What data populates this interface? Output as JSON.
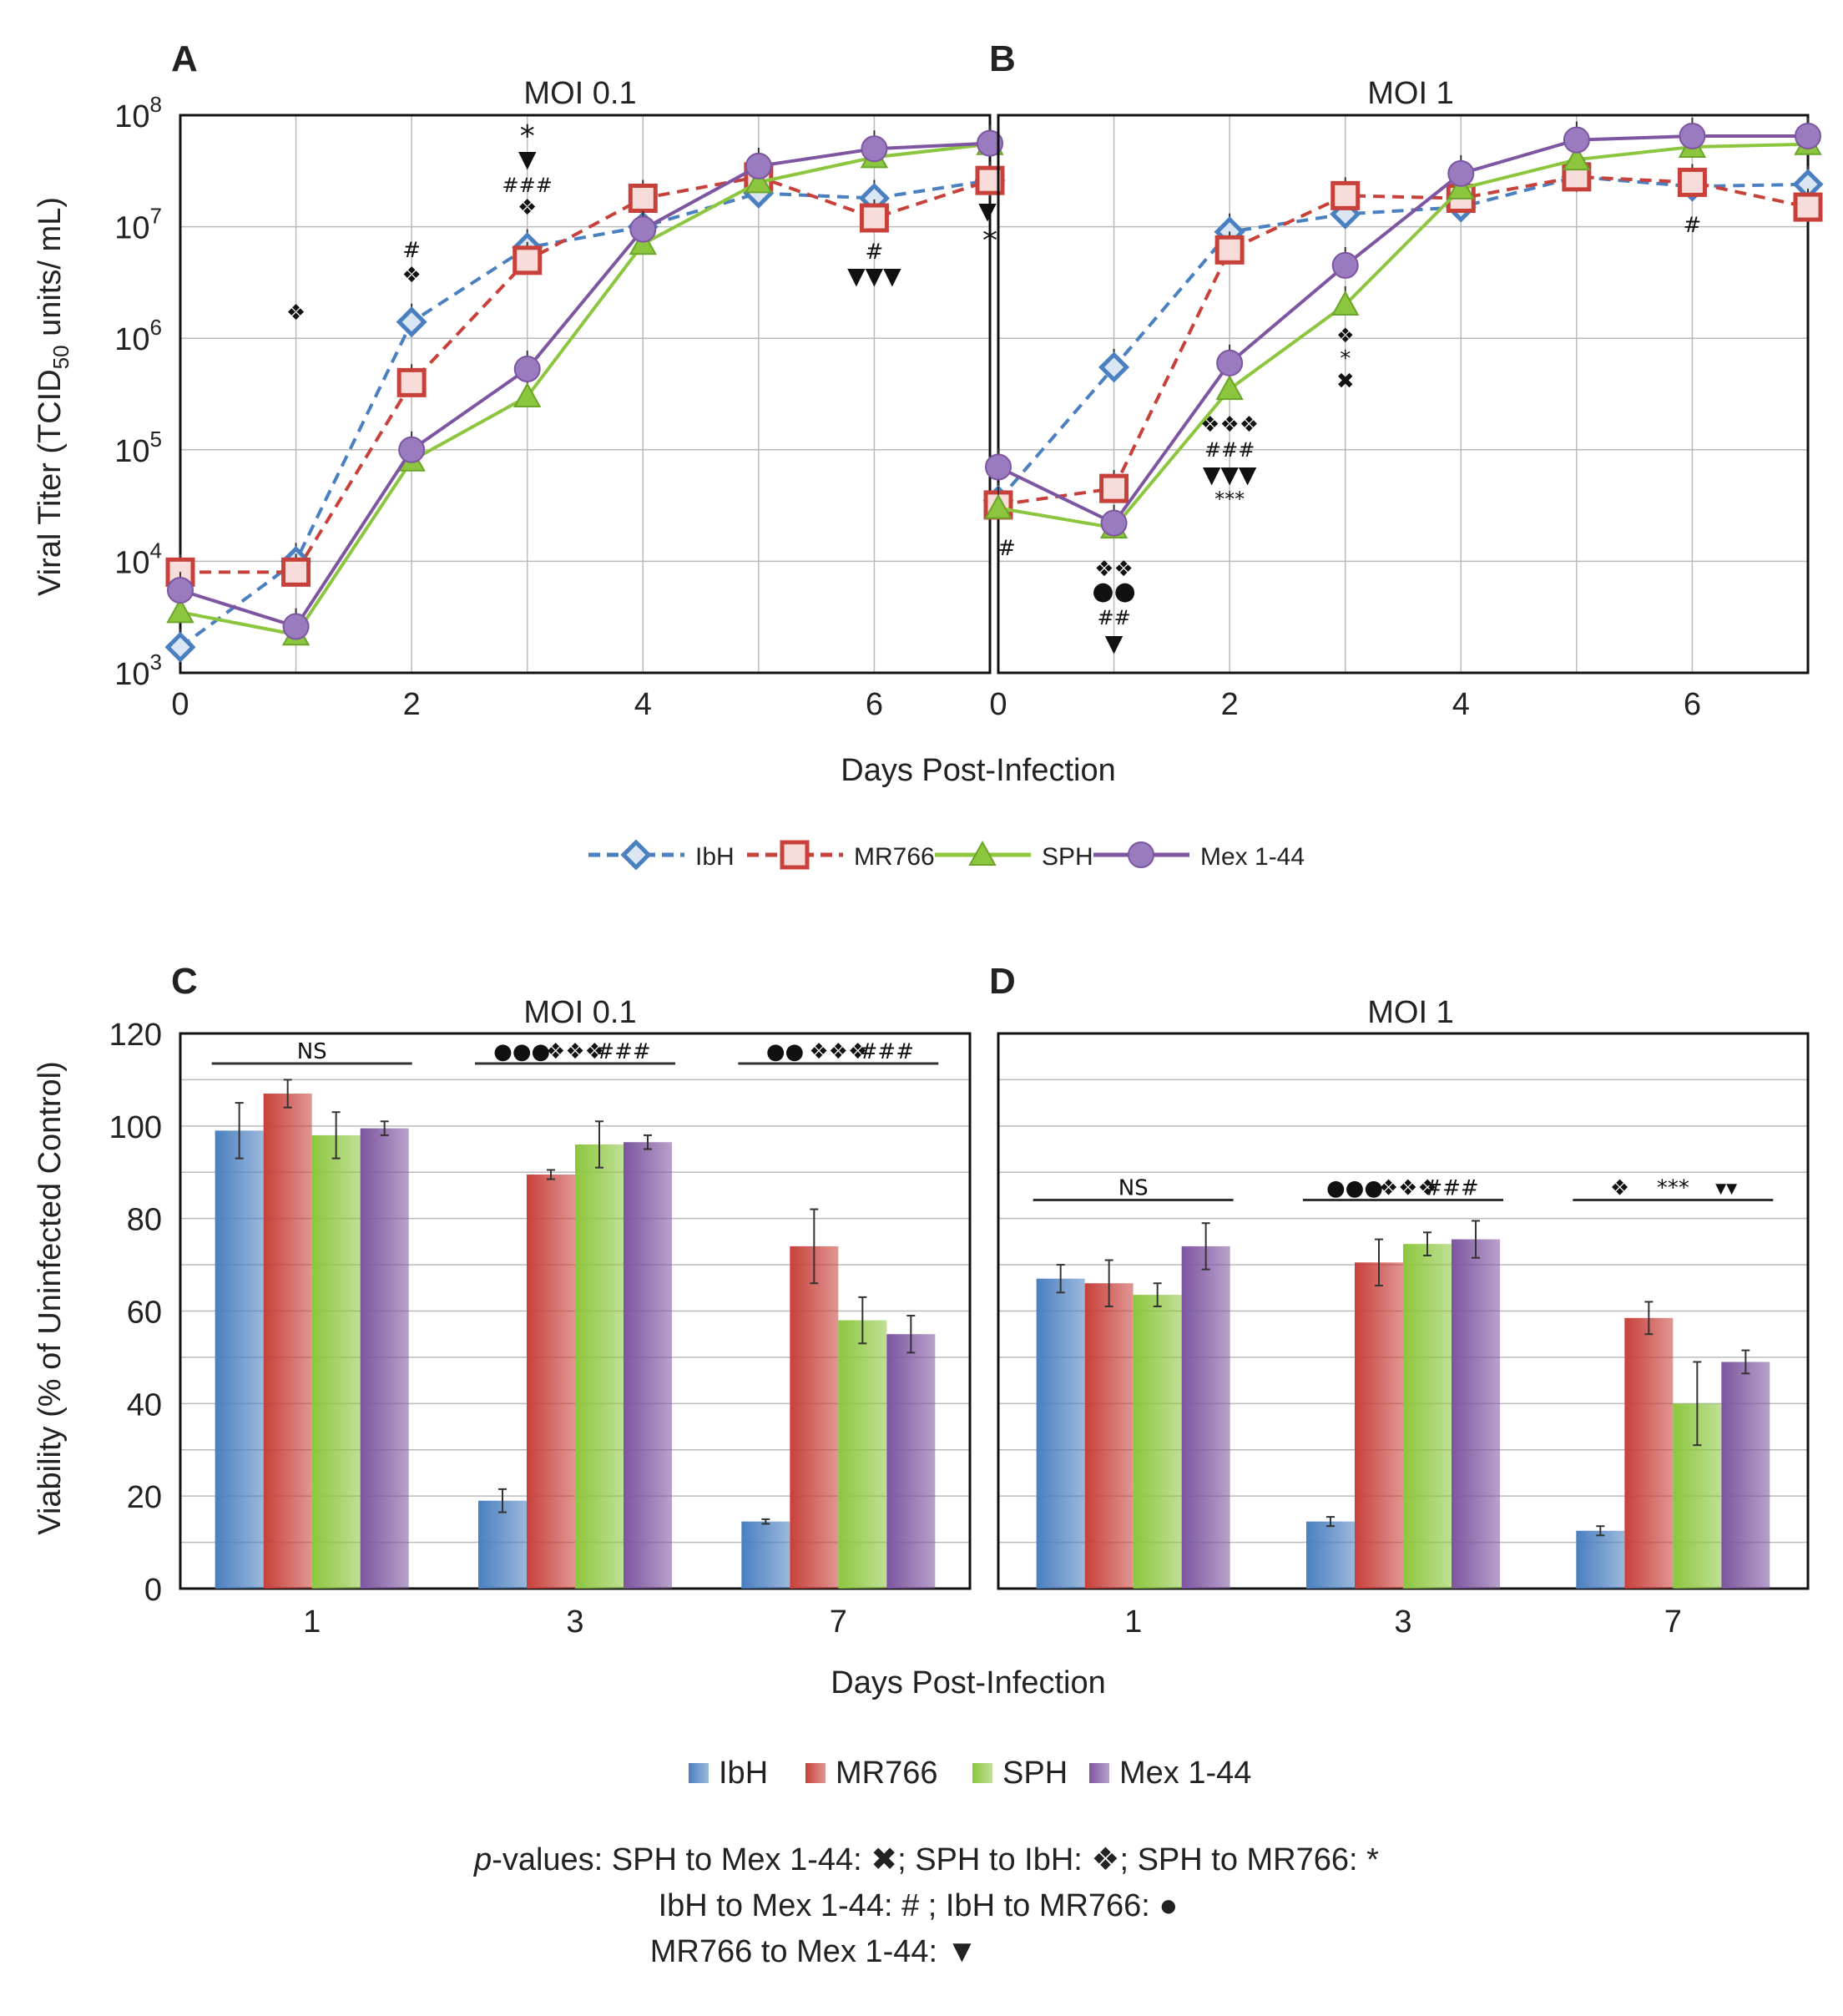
{
  "figure": {
    "xlabel_top": "Days Post-Infection",
    "xlabel_bottom": "Days Post-Infection",
    "ylabel_top_prefix": "Viral Titer (TCID",
    "ylabel_top_sub": "50",
    "ylabel_top_suffix": " units/ mL)",
    "ylabel_bottom": "Viability (% of Uninfected Control)"
  },
  "strains": [
    {
      "name": "IbH",
      "color": "#4a7fc0",
      "marker": "diamond",
      "dash": true
    },
    {
      "name": "MR766",
      "color": "#c8403a",
      "marker": "square",
      "dash": true
    },
    {
      "name": "SPH",
      "color": "#8cc63e",
      "marker": "triangle",
      "dash": false
    },
    {
      "name": "Mex 1-44",
      "color": "#7d55a0",
      "marker": "circle",
      "dash": false
    }
  ],
  "chart_data": [
    {
      "panel": "A",
      "type": "line",
      "title": "MOI 0.1",
      "xlabel": "Days Post-Infection",
      "ylabel": "Viral Titer (TCID50 units/ mL)",
      "x": [
        0,
        1,
        2,
        3,
        4,
        5,
        6,
        7
      ],
      "xticks": [
        0,
        2,
        4,
        6
      ],
      "xlim": [
        0,
        7
      ],
      "yscale": "log",
      "ylim": [
        1000,
        100000000
      ],
      "yticks": [
        [
          "10",
          "3"
        ],
        [
          "10",
          "4"
        ],
        [
          "10",
          "5"
        ],
        [
          "10",
          "6"
        ],
        [
          "10",
          "7"
        ],
        [
          "10",
          "8"
        ]
      ],
      "series": [
        {
          "name": "IbH",
          "values": [
            1700,
            10000,
            1400000,
            6500000,
            10000000,
            20000000,
            18000000,
            26000000
          ]
        },
        {
          "name": "MR766",
          "values": [
            8000,
            8000,
            400000,
            5000000,
            18000000,
            28000000,
            12000000,
            26000000
          ]
        },
        {
          "name": "SPH",
          "values": [
            3500,
            2200,
            80000,
            300000,
            7000000,
            25000000,
            42000000,
            55000000
          ]
        },
        {
          "name": "Mex 1-44",
          "values": [
            5500,
            2600,
            100000,
            530000,
            9500000,
            35000000,
            50000000,
            56000000
          ]
        }
      ],
      "annotations": [
        {
          "x": 1,
          "text": "❖"
        },
        {
          "x": 2,
          "text": "#"
        },
        {
          "x": 2,
          "text": "❖"
        },
        {
          "x": 3,
          "text": "*"
        },
        {
          "x": 3,
          "text": "▼"
        },
        {
          "x": 3,
          "text": "###"
        },
        {
          "x": 3,
          "text": "❖"
        },
        {
          "x": 6,
          "text": "#"
        },
        {
          "x": 6,
          "text": "▼▼▼"
        },
        {
          "x": 7,
          "text": "▼"
        },
        {
          "x": 7,
          "text": "*"
        }
      ]
    },
    {
      "panel": "B",
      "type": "line",
      "title": "MOI 1",
      "xlabel": "Days Post-Infection",
      "ylabel": "Viral Titer (TCID50 units/ mL)",
      "x": [
        0,
        1,
        2,
        3,
        4,
        5,
        6,
        7
      ],
      "xticks": [
        0,
        2,
        4,
        6
      ],
      "xlim": [
        0,
        7
      ],
      "yscale": "log",
      "ylim": [
        1000,
        100000000
      ],
      "series": [
        {
          "name": "IbH",
          "values": [
            35000,
            550000,
            9000000,
            13000000,
            15000000,
            28000000,
            23000000,
            24000000
          ]
        },
        {
          "name": "MR766",
          "values": [
            32000,
            45000,
            6200000,
            19000000,
            18000000,
            28000000,
            25000000,
            15000000
          ]
        },
        {
          "name": "SPH",
          "values": [
            30000,
            20000,
            350000,
            2000000,
            22000000,
            40000000,
            52000000,
            55000000
          ]
        },
        {
          "name": "Mex 1-44",
          "values": [
            70000,
            22000,
            600000,
            4500000,
            30000000,
            60000000,
            65000000,
            65000000
          ]
        }
      ],
      "annotations": [
        {
          "x": 0,
          "text": "#"
        },
        {
          "x": 1,
          "text": "❖❖"
        },
        {
          "x": 1,
          "text": "●●"
        },
        {
          "x": 1,
          "text": "##"
        },
        {
          "x": 1,
          "text": "▼"
        },
        {
          "x": 2,
          "text": "❖❖❖"
        },
        {
          "x": 2,
          "text": "###"
        },
        {
          "x": 2,
          "text": "▼▼▼"
        },
        {
          "x": 2,
          "text": "***"
        },
        {
          "x": 3,
          "text": "❖"
        },
        {
          "x": 3,
          "text": "*"
        },
        {
          "x": 3,
          "text": "✖"
        },
        {
          "x": 6,
          "text": "#"
        }
      ]
    },
    {
      "panel": "C",
      "type": "bar",
      "title": "MOI 0.1",
      "xlabel": "Days Post-Infection",
      "ylabel": "Viability (% of Uninfected Control)",
      "categories": [
        "1",
        "3",
        "7"
      ],
      "ylim": [
        0,
        120
      ],
      "yticks": [
        0,
        20,
        40,
        60,
        80,
        100,
        120
      ],
      "series": [
        {
          "name": "IbH",
          "values": [
            99,
            19,
            14.5
          ],
          "errors": [
            6,
            2.5,
            0.5
          ]
        },
        {
          "name": "MR766",
          "values": [
            107,
            89.5,
            74
          ],
          "errors": [
            3,
            1,
            8
          ]
        },
        {
          "name": "SPH",
          "values": [
            98,
            96,
            58
          ],
          "errors": [
            5,
            5,
            5
          ]
        },
        {
          "name": "Mex 1-44",
          "values": [
            99.5,
            96.5,
            55
          ],
          "errors": [
            1.5,
            1.5,
            4
          ]
        }
      ],
      "significance": [
        {
          "group": 0,
          "y": 113.5,
          "labels": [
            {
              "text": "NS",
              "offset": 0
            }
          ]
        },
        {
          "group": 1,
          "y": 113.5,
          "labels": [
            {
              "text": "●●●",
              "offset": -0.55
            },
            {
              "text": "❖❖❖",
              "offset": 0
            },
            {
              "text": "###",
              "offset": 0.5
            }
          ]
        },
        {
          "group": 2,
          "y": 113.5,
          "labels": [
            {
              "text": "●●",
              "offset": -0.55
            },
            {
              "text": "❖❖❖",
              "offset": 0
            },
            {
              "text": "###",
              "offset": 0.5
            }
          ]
        }
      ]
    },
    {
      "panel": "D",
      "type": "bar",
      "title": "MOI 1",
      "xlabel": "Days Post-Infection",
      "ylabel": "Viability (% of Uninfected Control)",
      "categories": [
        "1",
        "3",
        "7"
      ],
      "ylim": [
        0,
        120
      ],
      "series": [
        {
          "name": "IbH",
          "values": [
            67,
            14.5,
            12.5
          ],
          "errors": [
            3,
            1,
            1
          ]
        },
        {
          "name": "MR766",
          "values": [
            66,
            70.5,
            58.5
          ],
          "errors": [
            5,
            5,
            3.5
          ]
        },
        {
          "name": "SPH",
          "values": [
            63.5,
            74.5,
            40
          ],
          "errors": [
            2.5,
            2.5,
            9
          ]
        },
        {
          "name": "Mex 1-44",
          "values": [
            74,
            75.5,
            49
          ],
          "errors": [
            5,
            4,
            2.5
          ]
        }
      ],
      "significance": [
        {
          "group": 0,
          "y": 84,
          "labels": [
            {
              "text": "NS",
              "offset": 0
            }
          ]
        },
        {
          "group": 1,
          "y": 84,
          "labels": [
            {
              "text": "●●●",
              "offset": -0.5
            },
            {
              "text": "❖❖❖",
              "offset": 0.05
            },
            {
              "text": "###",
              "offset": 0.5
            }
          ]
        },
        {
          "group": 2,
          "y": 84,
          "labels": [
            {
              "text": "❖",
              "offset": -0.55
            },
            {
              "text": "***",
              "offset": 0
            },
            {
              "text": "▾▾",
              "offset": 0.55
            }
          ]
        }
      ]
    }
  ],
  "pvalue_legend": {
    "line1_prefix": "p",
    "line1_rest": "-values: SPH to Mex 1-44: ✖; SPH to IbH: ❖; SPH to MR766: *",
    "line2": "IbH to Mex 1-44: # ;   IbH to MR766: ●",
    "line3": "MR766 to Mex 1-44: ▼"
  }
}
